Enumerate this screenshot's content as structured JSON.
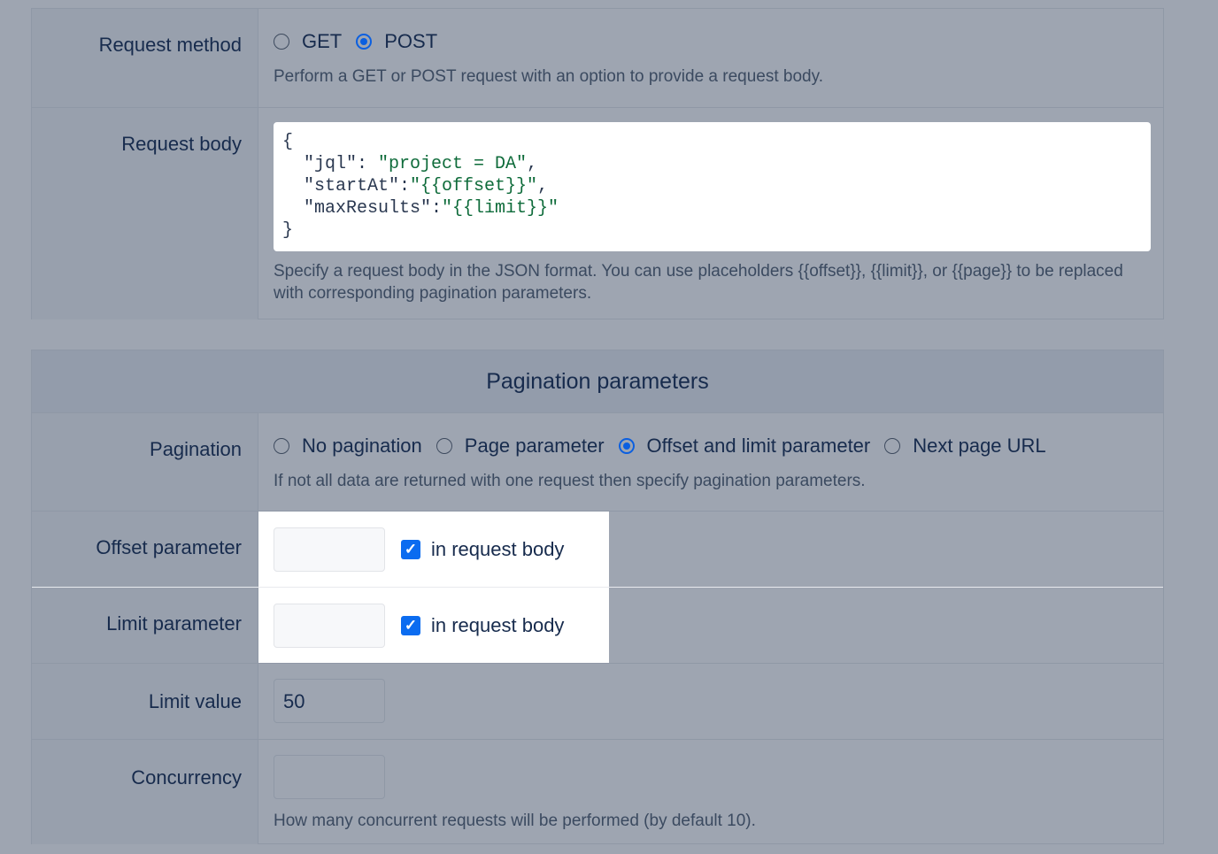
{
  "request": {
    "method_label": "Request method",
    "method_options": [
      {
        "label": "GET",
        "selected": false
      },
      {
        "label": "POST",
        "selected": true
      }
    ],
    "method_help": "Perform a GET or POST request with an option to provide a request body.",
    "body_label": "Request body",
    "body_lines": {
      "l1": "{",
      "k2": "  \"jql\": ",
      "v2": "\"project = DA\"",
      "e2": ",",
      "k3": "  \"startAt\":",
      "v3": "\"{{offset}}\"",
      "e3": ",",
      "k4": "  \"maxResults\":",
      "v4": "\"{{limit}}\"",
      "l5": "}"
    },
    "body_help": "Specify a request body in the JSON format. You can use placeholders {{offset}}, {{limit}}, or {{page}} to be replaced with corresponding pagination parameters."
  },
  "pagination": {
    "title": "Pagination parameters",
    "pagination_label": "Pagination",
    "options": [
      {
        "label": "No pagination",
        "selected": false
      },
      {
        "label": "Page parameter",
        "selected": false
      },
      {
        "label": "Offset and limit parameter",
        "selected": true
      },
      {
        "label": "Next page URL",
        "selected": false
      }
    ],
    "pagination_help": "If not all data are returned with one request then specify pagination parameters.",
    "offset_label": "Offset parameter",
    "offset_value": "",
    "offset_checkbox": "in request body",
    "limit_label": "Limit parameter",
    "limit_value": "",
    "limit_checkbox": "in request body",
    "limit_value_label": "Limit value",
    "limit_value_value": "50",
    "concurrency_label": "Concurrency",
    "concurrency_value": "",
    "concurrency_help": "How many concurrent requests will be performed (by default 10)."
  },
  "colors": {
    "accent": "#0b6cf0",
    "overlay": "#9ea5b1",
    "string": "#0e6b3a"
  }
}
